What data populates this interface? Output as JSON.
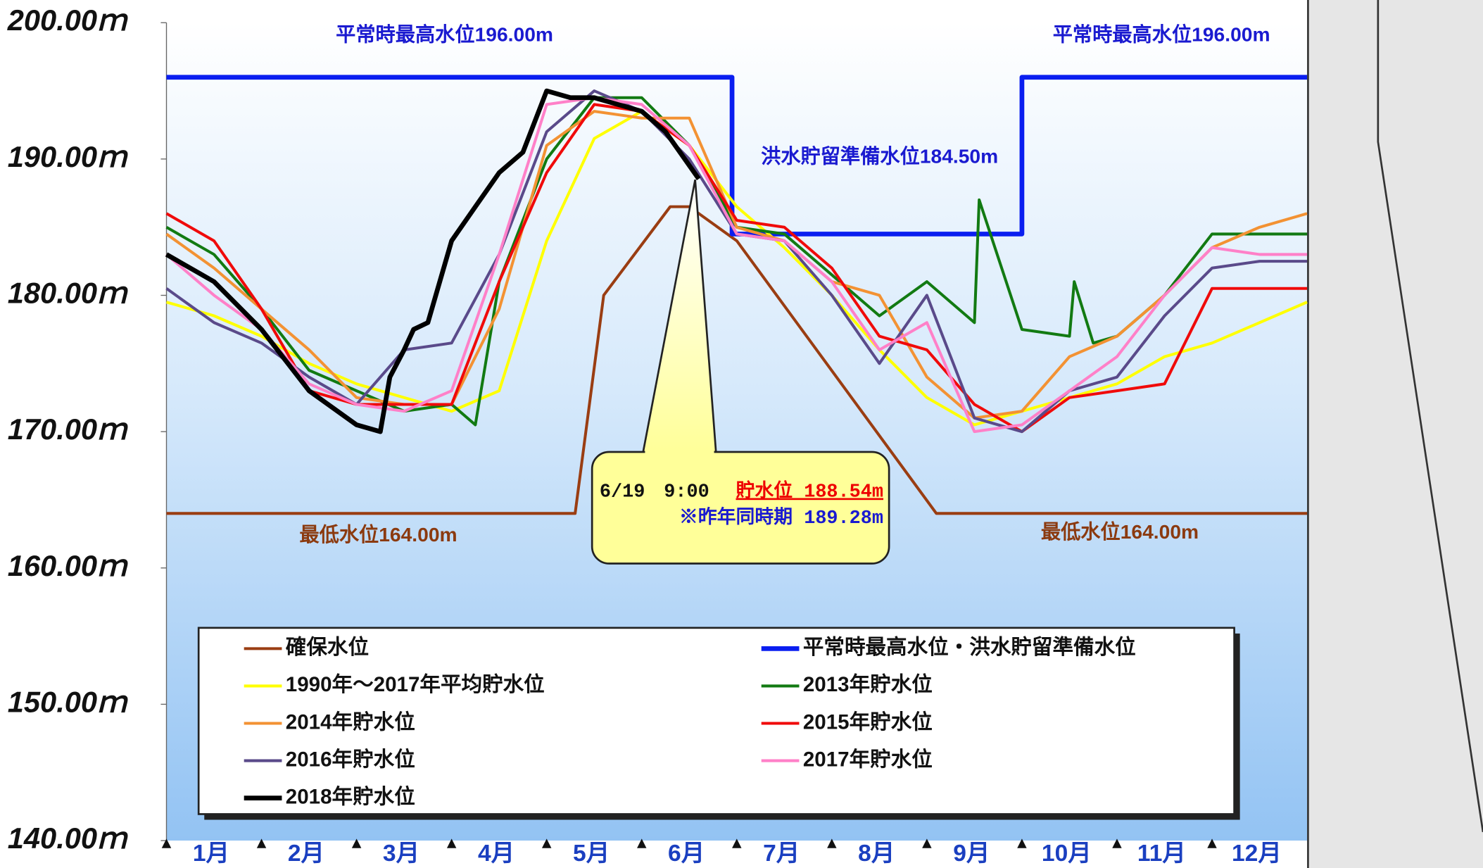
{
  "chart_data": {
    "type": "line",
    "ylim": [
      140,
      200
    ],
    "yticks": [
      {
        "value": 200,
        "label": "200.00ｍ"
      },
      {
        "value": 190,
        "label": "190.00ｍ"
      },
      {
        "value": 180,
        "label": "180.00ｍ"
      },
      {
        "value": 170,
        "label": "170.00ｍ"
      },
      {
        "value": 160,
        "label": "160.00ｍ"
      },
      {
        "value": 150,
        "label": "150.00ｍ"
      },
      {
        "value": 140,
        "label": "140.00ｍ"
      }
    ],
    "xlim": [
      1,
      13
    ],
    "categories": [
      "1月",
      "2月",
      "3月",
      "4月",
      "5月",
      "6月",
      "7月",
      "8月",
      "9月",
      "10月",
      "11月",
      "12月"
    ],
    "annotations": {
      "normal_max": "平常時最高水位196.00m",
      "flood_prep": "洪水貯留準備水位184.50m",
      "minimum": "最低水位164.00m"
    },
    "callout": {
      "time": "6/19　9:00",
      "current": "貯水位 188.54m",
      "last_year": "※昨年同時期 189.28m"
    },
    "series": [
      {
        "name": "確保水位",
        "color": "#9a3d12",
        "width": 3,
        "x": [
          1,
          5.3,
          5.6,
          6.3,
          6.5,
          7,
          9.1,
          13
        ],
        "values": [
          164,
          164,
          180,
          186.5,
          186.5,
          184,
          164,
          164
        ]
      },
      {
        "name": "平常時最高水位・洪水貯留準備水位",
        "color": "#0a1ef0",
        "width": 5,
        "x": [
          1,
          6.95,
          6.95,
          10,
          10,
          13
        ],
        "values": [
          196,
          196,
          184.5,
          184.5,
          196,
          196
        ]
      },
      {
        "name": "1990年～2017年平均貯水位",
        "color": "#ffff00",
        "width": 3,
        "x": [
          1,
          1.5,
          2,
          2.5,
          3,
          3.5,
          4,
          4.5,
          5,
          5.5,
          6,
          6.5,
          7,
          7.5,
          8,
          8.5,
          9,
          9.5,
          10,
          10.5,
          11,
          11.5,
          12,
          12.5,
          13
        ],
        "values": [
          179.5,
          178.5,
          177,
          175,
          173.5,
          172.5,
          171.5,
          173,
          184,
          191.5,
          193.5,
          191,
          186.5,
          183.5,
          180,
          176,
          172.5,
          170.5,
          171.5,
          172.5,
          173.5,
          175.5,
          176.5,
          178,
          179.5
        ]
      },
      {
        "name": "2013年貯水位",
        "color": "#127a12",
        "width": 3,
        "x": [
          1,
          1.5,
          2,
          2.5,
          3,
          3.5,
          4,
          4.25,
          4.5,
          5,
          5.5,
          6,
          6.5,
          7,
          7.5,
          8,
          8.5,
          9,
          9.5,
          9.55,
          10,
          10.5,
          10.55,
          10.75,
          11,
          11.5,
          12,
          12.5,
          13
        ],
        "values": [
          185,
          183,
          179,
          174.5,
          173,
          171.5,
          172,
          170.5,
          181,
          190,
          194.5,
          194.5,
          191,
          185,
          184.5,
          181.5,
          178.5,
          181,
          178,
          187,
          177.5,
          177,
          181,
          176.5,
          177,
          180,
          184.5,
          184.5,
          184.5
        ]
      },
      {
        "name": "2014年貯水位",
        "color": "#f39233",
        "width": 3,
        "x": [
          1,
          1.5,
          2,
          2.5,
          3,
          3.5,
          4,
          4.5,
          5,
          5.5,
          6,
          6.5,
          7,
          7.5,
          8,
          8.5,
          9,
          9.5,
          10,
          10.5,
          11,
          11.5,
          12,
          12.5,
          13
        ],
        "values": [
          184.5,
          182,
          179,
          176,
          172.5,
          172,
          172,
          179,
          191,
          193.5,
          193,
          193,
          185,
          184,
          181,
          180,
          174,
          171,
          171.5,
          175.5,
          177,
          180,
          183.5,
          185,
          186
        ]
      },
      {
        "name": "2015年貯水位",
        "color": "#f00a0a",
        "width": 3,
        "x": [
          1,
          1.5,
          2,
          2.5,
          3,
          3.5,
          4,
          4.5,
          5,
          5.5,
          6,
          6.5,
          7,
          7.5,
          8,
          8.5,
          9,
          9.5,
          10,
          10.5,
          11,
          11.5,
          12,
          12.5,
          13
        ],
        "values": [
          186,
          184,
          179,
          173,
          172,
          172,
          172,
          181,
          189,
          194,
          193.5,
          191,
          185.5,
          185,
          182,
          177,
          176,
          172,
          170,
          172.5,
          173,
          173.5,
          180.5,
          180.5,
          180.5
        ]
      },
      {
        "name": "2016年貯水位",
        "color": "#5a4a8a",
        "width": 3,
        "x": [
          1,
          1.5,
          2,
          2.5,
          3,
          3.5,
          4,
          4.5,
          5,
          5.5,
          6,
          6.5,
          7,
          7.5,
          8,
          8.5,
          9,
          9.5,
          10,
          10.5,
          11,
          11.5,
          12,
          12.5,
          13
        ],
        "values": [
          180.5,
          178,
          176.5,
          174,
          172,
          176,
          176.5,
          183,
          192,
          195,
          193.5,
          190,
          184.5,
          184,
          180,
          175,
          180,
          171,
          170,
          173,
          174,
          178.5,
          182,
          182.5,
          182.5
        ]
      },
      {
        "name": "2017年貯水位",
        "color": "#ff80c8",
        "width": 3,
        "x": [
          1,
          1.5,
          2,
          2.5,
          3,
          3.5,
          4,
          4.5,
          5,
          5.5,
          6,
          6.5,
          7,
          7.5,
          8,
          8.5,
          9,
          9.5,
          10,
          10.5,
          11,
          11.5,
          12,
          12.5,
          13
        ],
        "values": [
          183,
          180,
          177.5,
          173.5,
          172,
          171.5,
          173,
          183,
          194,
          194.5,
          194,
          191,
          184.5,
          184,
          181,
          176,
          178,
          170,
          170.5,
          173,
          175.5,
          180,
          183.5,
          183,
          183
        ]
      },
      {
        "name": "2018年貯水位",
        "color": "#000000",
        "width": 5,
        "x": [
          1,
          1.5,
          2,
          2.5,
          3,
          3.25,
          3.35,
          3.5,
          3.6,
          3.75,
          4,
          4.25,
          4.5,
          4.75,
          5,
          5.25,
          5.5,
          5.75,
          6,
          6.25,
          6.6
        ],
        "values": [
          183,
          181,
          177.5,
          173,
          170.5,
          170,
          174,
          176,
          177.5,
          178,
          184,
          186.5,
          189,
          190.5,
          195,
          194.5,
          194.5,
          194,
          193.5,
          192,
          188.54
        ]
      }
    ]
  }
}
